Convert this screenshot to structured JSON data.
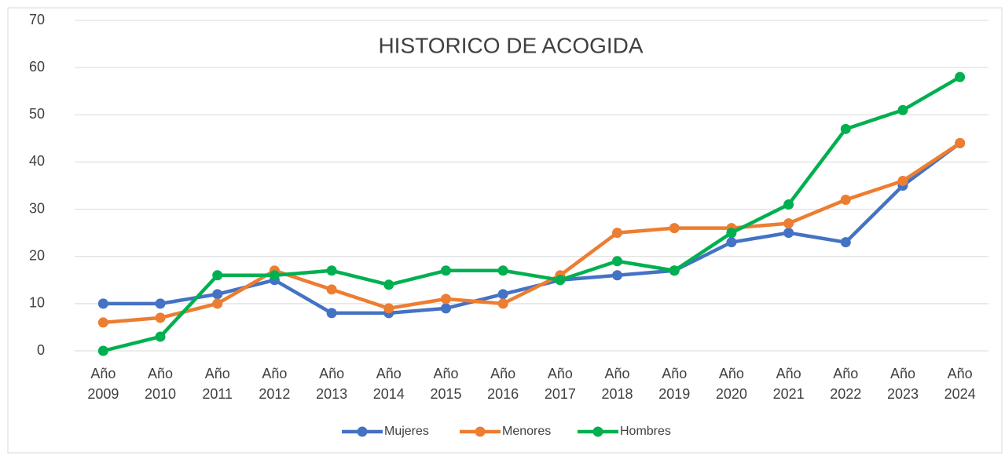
{
  "chart_data": {
    "type": "line",
    "title": "HISTORICO DE ACOGIDA",
    "categories": [
      "Año 2009",
      "Año 2010",
      "Año 2011",
      "Año 2012",
      "Año 2013",
      "Año 2014",
      "Año 2015",
      "Año 2016",
      "Año 2017",
      "Año 2018",
      "Año 2019",
      "Año 2020",
      "Año 2021",
      "Año 2022",
      "Año 2023",
      "Año 2024"
    ],
    "series": [
      {
        "name": "Mujeres",
        "color": "#4472c4",
        "values": [
          10,
          10,
          12,
          15,
          8,
          8,
          9,
          12,
          15,
          16,
          17,
          23,
          25,
          23,
          35,
          44
        ]
      },
      {
        "name": "Menores",
        "color": "#ed7d31",
        "values": [
          6,
          7,
          10,
          17,
          13,
          9,
          11,
          10,
          16,
          25,
          26,
          26,
          27,
          32,
          36,
          44
        ]
      },
      {
        "name": "Hombres",
        "color": "#00b050",
        "values": [
          0,
          3,
          16,
          16,
          17,
          14,
          17,
          17,
          15,
          19,
          17,
          25,
          31,
          47,
          51,
          58
        ]
      }
    ],
    "ylim": [
      0,
      70
    ],
    "yticks": [
      0,
      10,
      20,
      30,
      40,
      50,
      60,
      70
    ],
    "grid": true,
    "legend": "bottom"
  }
}
